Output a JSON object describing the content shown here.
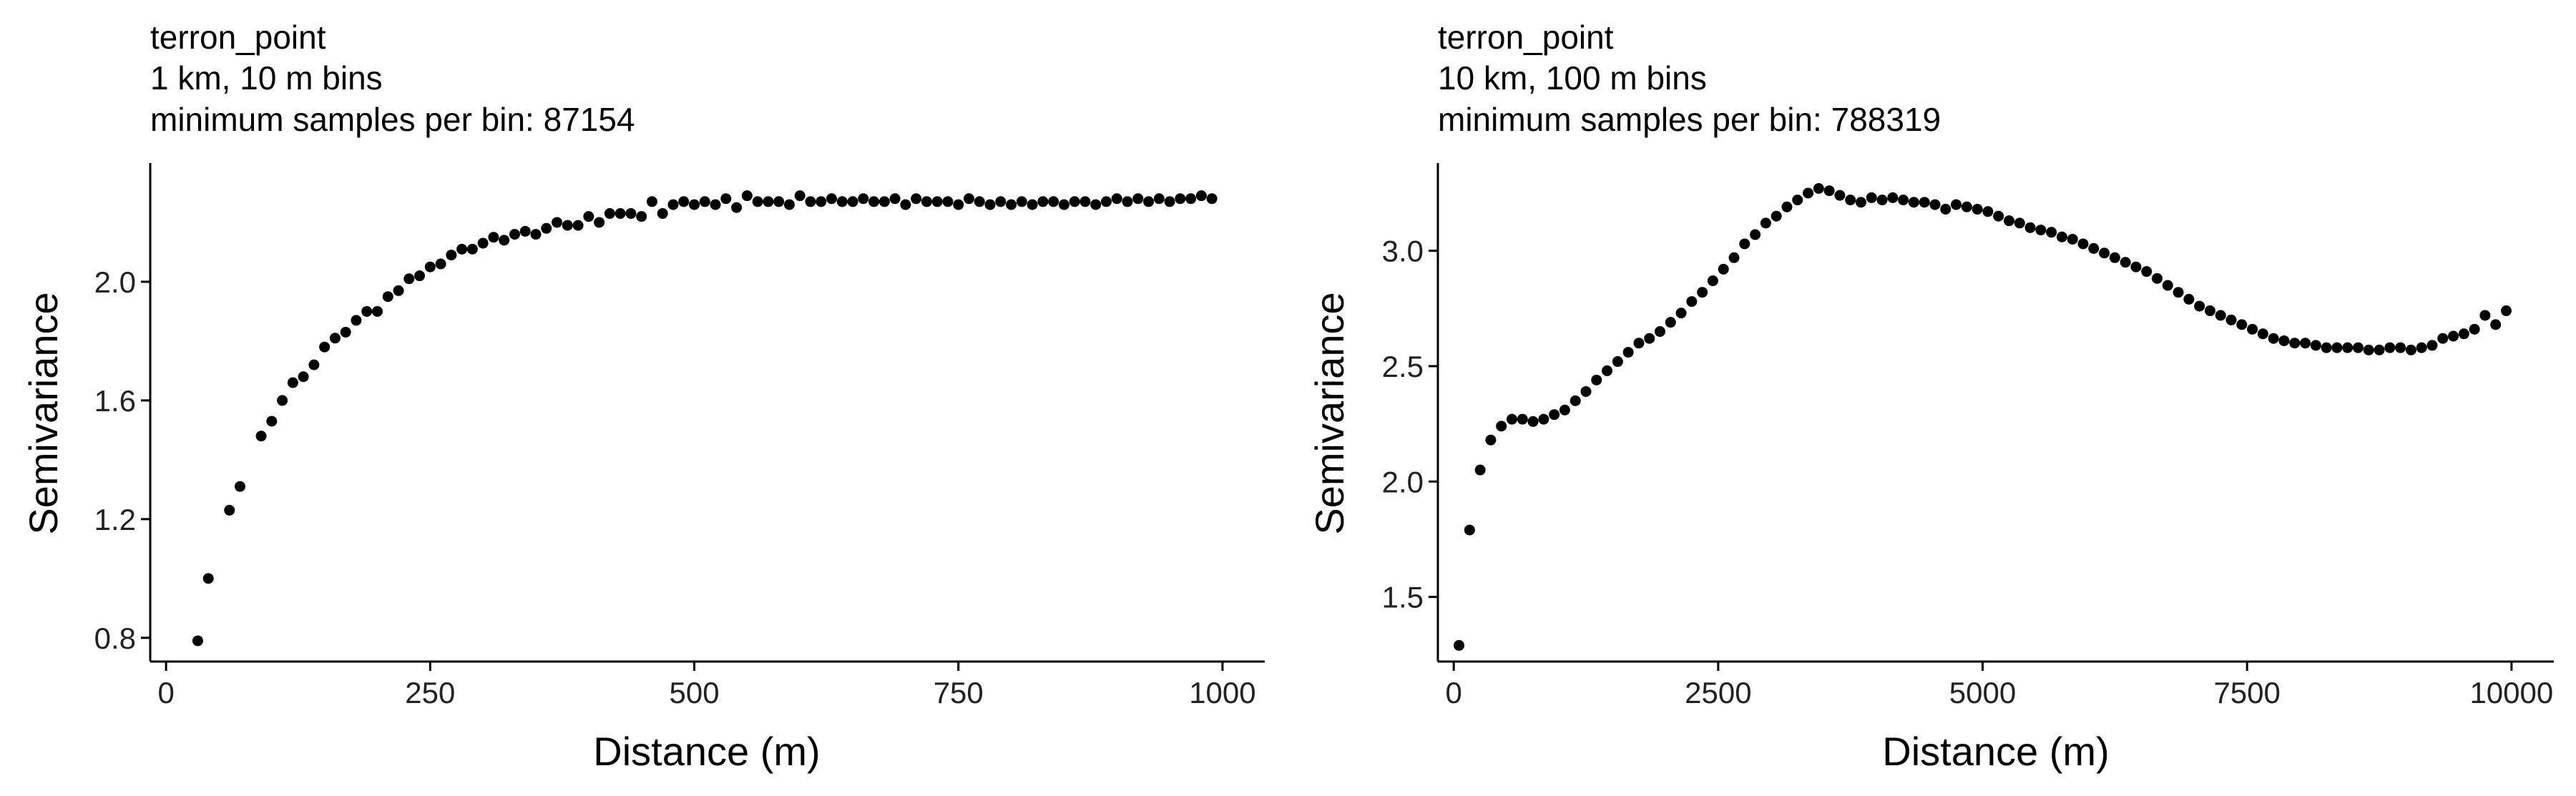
{
  "chart_data": [
    {
      "type": "scatter",
      "title": "terron_point",
      "subtitle": [
        "1 km, 10 m bins",
        "minimum samples per bin: 87154"
      ],
      "xlabel": "Distance (m)",
      "ylabel": "Semivariance",
      "xlim": [
        -15,
        1040
      ],
      "ylim": [
        0.72,
        2.4
      ],
      "xticks": [
        0,
        250,
        500,
        750,
        1000
      ],
      "xtick_labels": [
        "0",
        "250",
        "500",
        "750",
        "1000"
      ],
      "yticks": [
        0.8,
        1.2,
        1.6,
        2.0
      ],
      "ytick_labels": [
        "0.8",
        "1.2",
        "1.6",
        "2.0"
      ],
      "grid": false,
      "legend": "none",
      "point_color": "#000000",
      "x": [
        30,
        40,
        60,
        70,
        90,
        100,
        110,
        120,
        130,
        140,
        150,
        160,
        170,
        180,
        190,
        200,
        210,
        220,
        230,
        240,
        250,
        260,
        270,
        280,
        290,
        300,
        310,
        320,
        330,
        340,
        350,
        360,
        370,
        380,
        390,
        400,
        410,
        420,
        430,
        440,
        450,
        460,
        470,
        480,
        490,
        500,
        510,
        520,
        530,
        540,
        550,
        560,
        570,
        580,
        590,
        600,
        610,
        620,
        630,
        640,
        650,
        660,
        670,
        680,
        690,
        700,
        710,
        720,
        730,
        740,
        750,
        760,
        770,
        780,
        790,
        800,
        810,
        820,
        830,
        840,
        850,
        860,
        870,
        880,
        890,
        900,
        910,
        920,
        930,
        940,
        950,
        960,
        970,
        980,
        990
      ],
      "y": [
        0.79,
        1.0,
        1.23,
        1.31,
        1.48,
        1.53,
        1.6,
        1.66,
        1.68,
        1.72,
        1.78,
        1.81,
        1.83,
        1.87,
        1.9,
        1.9,
        1.95,
        1.97,
        2.01,
        2.02,
        2.05,
        2.06,
        2.09,
        2.11,
        2.11,
        2.13,
        2.15,
        2.14,
        2.16,
        2.17,
        2.16,
        2.18,
        2.2,
        2.19,
        2.19,
        2.22,
        2.2,
        2.23,
        2.23,
        2.23,
        2.22,
        2.27,
        2.23,
        2.26,
        2.27,
        2.26,
        2.27,
        2.26,
        2.28,
        2.25,
        2.29,
        2.27,
        2.27,
        2.27,
        2.26,
        2.29,
        2.27,
        2.27,
        2.28,
        2.27,
        2.27,
        2.28,
        2.27,
        2.27,
        2.28,
        2.26,
        2.28,
        2.27,
        2.27,
        2.27,
        2.26,
        2.28,
        2.27,
        2.26,
        2.27,
        2.26,
        2.27,
        2.26,
        2.27,
        2.27,
        2.26,
        2.27,
        2.27,
        2.26,
        2.27,
        2.28,
        2.27,
        2.28,
        2.27,
        2.28,
        2.27,
        2.28,
        2.28,
        2.29,
        2.28
      ]
    },
    {
      "type": "scatter",
      "title": "terron_point",
      "subtitle": [
        "10 km, 100 m bins",
        "minimum samples per bin: 788319"
      ],
      "xlabel": "Distance (m)",
      "ylabel": "Semivariance",
      "xlim": [
        -150,
        10400
      ],
      "ylim": [
        1.22,
        3.38
      ],
      "xticks": [
        0,
        2500,
        5000,
        7500,
        10000
      ],
      "xtick_labels": [
        "0",
        "2500",
        "5000",
        "7500",
        "10000"
      ],
      "yticks": [
        1.5,
        2.0,
        2.5,
        3.0
      ],
      "ytick_labels": [
        "1.5",
        "2.0",
        "2.5",
        "3.0"
      ],
      "grid": false,
      "legend": "none",
      "point_color": "#000000",
      "x": [
        50,
        150,
        250,
        350,
        450,
        550,
        650,
        750,
        850,
        950,
        1050,
        1150,
        1250,
        1350,
        1450,
        1550,
        1650,
        1750,
        1850,
        1950,
        2050,
        2150,
        2250,
        2350,
        2450,
        2550,
        2650,
        2750,
        2850,
        2950,
        3050,
        3150,
        3250,
        3350,
        3450,
        3550,
        3650,
        3750,
        3850,
        3950,
        4050,
        4150,
        4250,
        4350,
        4450,
        4550,
        4650,
        4750,
        4850,
        4950,
        5050,
        5150,
        5250,
        5350,
        5450,
        5550,
        5650,
        5750,
        5850,
        5950,
        6050,
        6150,
        6250,
        6350,
        6450,
        6550,
        6650,
        6750,
        6850,
        6950,
        7050,
        7150,
        7250,
        7350,
        7450,
        7550,
        7650,
        7750,
        7850,
        7950,
        8050,
        8150,
        8250,
        8350,
        8450,
        8550,
        8650,
        8750,
        8850,
        8950,
        9050,
        9150,
        9250,
        9350,
        9450,
        9550,
        9650,
        9750,
        9850,
        9950
      ],
      "y": [
        1.29,
        1.79,
        2.05,
        2.18,
        2.24,
        2.27,
        2.27,
        2.26,
        2.27,
        2.29,
        2.31,
        2.35,
        2.39,
        2.44,
        2.48,
        2.52,
        2.56,
        2.6,
        2.62,
        2.65,
        2.69,
        2.73,
        2.78,
        2.82,
        2.87,
        2.92,
        2.97,
        3.03,
        3.07,
        3.12,
        3.15,
        3.19,
        3.22,
        3.25,
        3.27,
        3.26,
        3.24,
        3.22,
        3.21,
        3.23,
        3.22,
        3.23,
        3.22,
        3.21,
        3.21,
        3.2,
        3.18,
        3.2,
        3.19,
        3.18,
        3.17,
        3.15,
        3.13,
        3.12,
        3.1,
        3.09,
        3.08,
        3.06,
        3.05,
        3.03,
        3.01,
        2.99,
        2.97,
        2.95,
        2.93,
        2.91,
        2.88,
        2.85,
        2.82,
        2.79,
        2.76,
        2.74,
        2.72,
        2.7,
        2.68,
        2.66,
        2.64,
        2.62,
        2.61,
        2.6,
        2.6,
        2.59,
        2.58,
        2.58,
        2.58,
        2.58,
        2.57,
        2.57,
        2.58,
        2.58,
        2.57,
        2.58,
        2.59,
        2.62,
        2.63,
        2.64,
        2.66,
        2.72,
        2.68,
        2.74
      ]
    }
  ]
}
